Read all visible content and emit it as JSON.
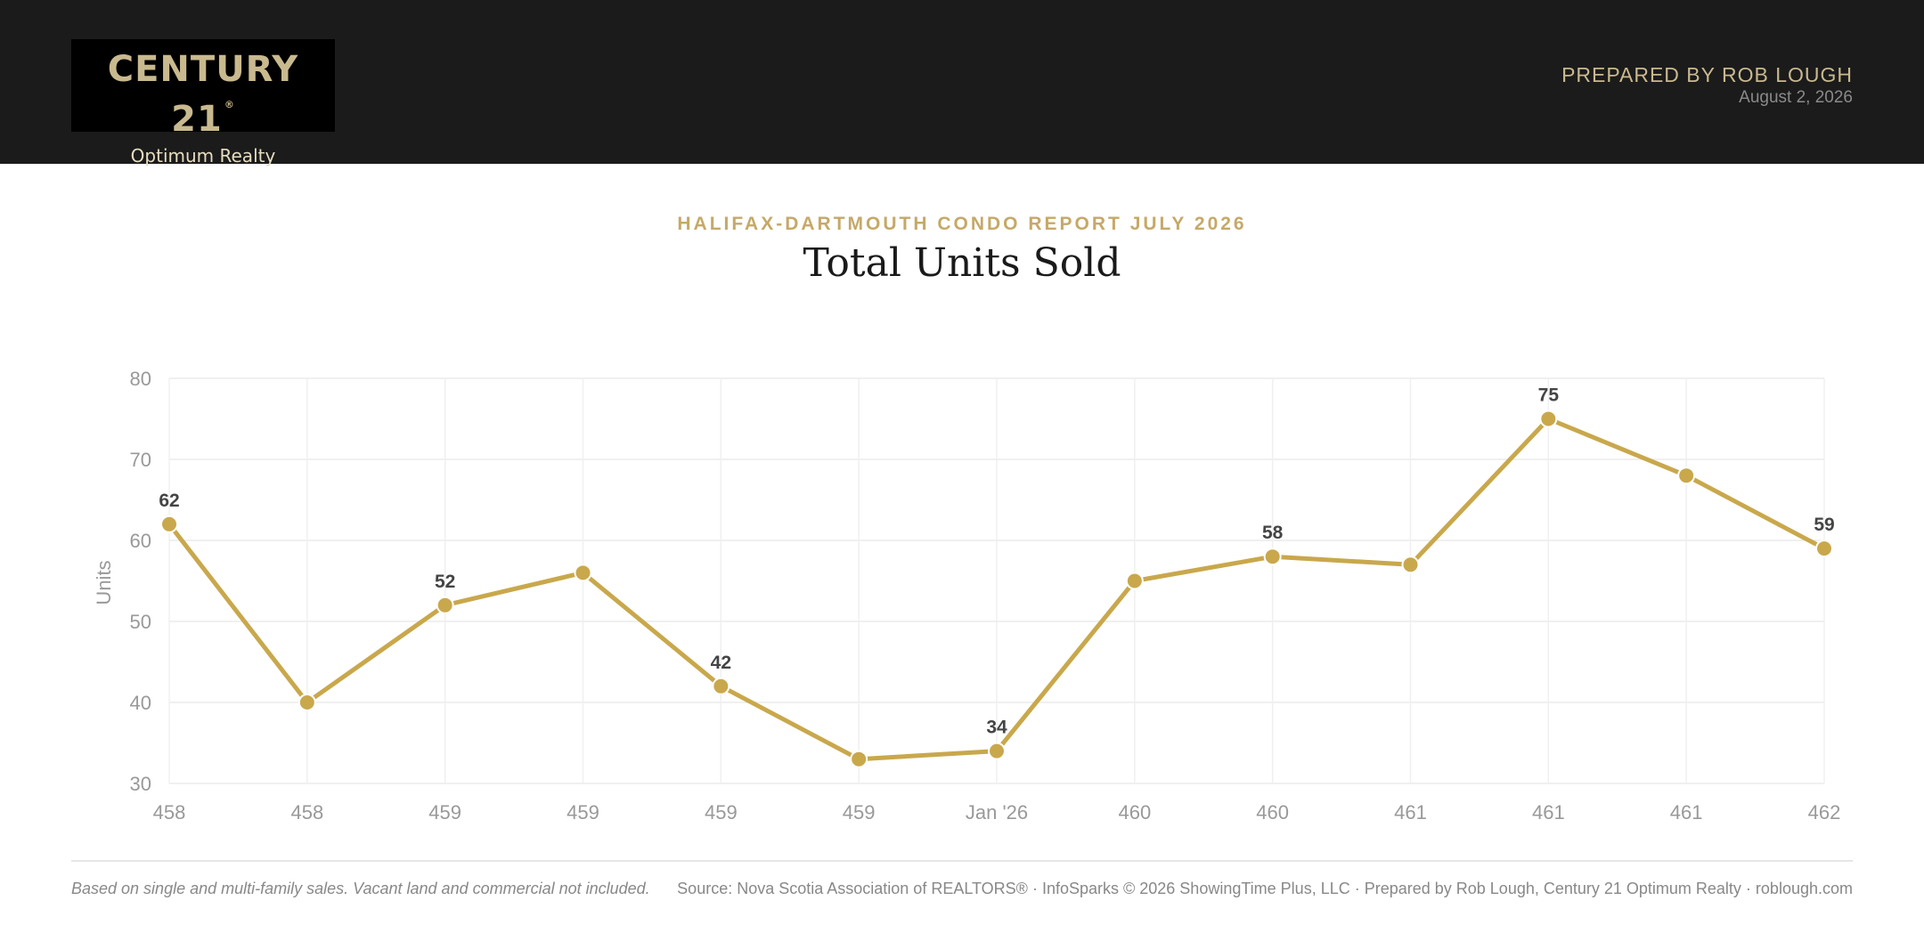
{
  "header": {
    "logo_main": "CENTURY 21",
    "logo_reg": "®",
    "logo_sub": "Optimum Realty",
    "prepared_by": "PREPARED BY ROB LOUGH",
    "date": "August 2, 2026"
  },
  "report": {
    "subtitle": "HALIFAX-DARTMOUTH CONDO REPORT JULY 2026",
    "title": "Total Units Sold"
  },
  "chart_data": {
    "type": "line",
    "categories": [
      "458",
      "458",
      "459",
      "459",
      "459",
      "459",
      "Jan '26",
      "460",
      "460",
      "461",
      "461",
      "461",
      "462"
    ],
    "series": [
      {
        "values": [
          62,
          40,
          52,
          56,
          42,
          33,
          34,
          55,
          58,
          57,
          75,
          68,
          59
        ]
      }
    ],
    "labeled_indices": [
      0,
      2,
      4,
      6,
      8,
      10,
      12
    ],
    "ylabel": "Units",
    "ylim": [
      30,
      80
    ],
    "yticks": [
      30,
      40,
      50,
      60,
      70,
      80
    ],
    "grid": true,
    "line_color": "#c9a84c",
    "point_color": "#c9a84c"
  },
  "footer": {
    "note": "Based on single and multi-family sales. Vacant land and commercial not included.",
    "source": "Source: Nova Scotia Association of REALTORS® · InfoSparks © 2026 ShowingTime Plus, LLC · Prepared by Rob Lough, Century 21 Optimum Realty · roblough.com"
  }
}
